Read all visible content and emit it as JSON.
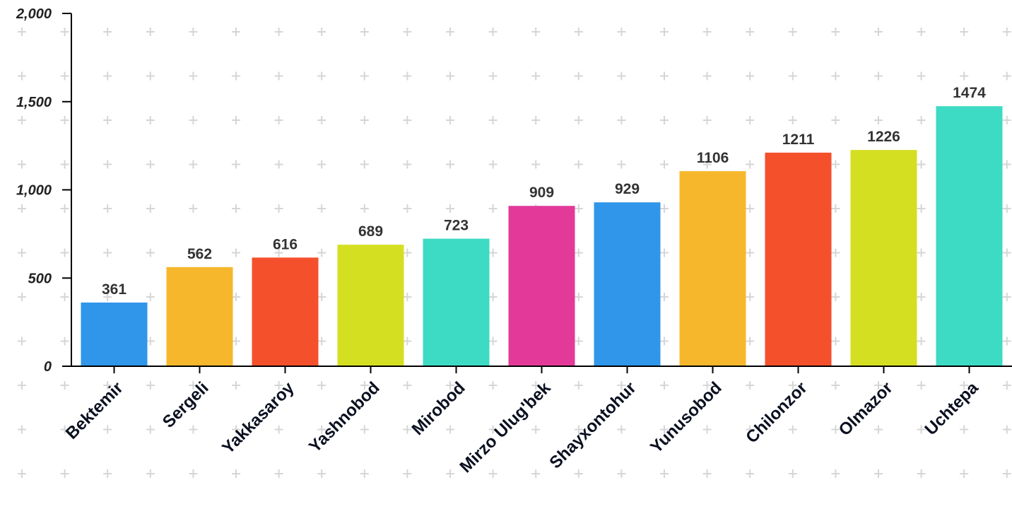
{
  "chart_data": {
    "type": "bar",
    "title": "",
    "xlabel": "",
    "ylabel": "",
    "categories": [
      "Bektemir",
      "Sergeli",
      "Yakkasaroy",
      "Yashnobod",
      "Mirobod",
      "Mirzo Ulug'bek",
      "Shayxontohur",
      "Yunusobod",
      "Chilonzor",
      "Olmazor",
      "Uchtepa"
    ],
    "values": [
      361,
      562,
      616,
      689,
      723,
      909,
      929,
      1106,
      1211,
      1226,
      1474
    ],
    "data_labels": [
      "361",
      "562",
      "616",
      "689",
      "723",
      "909",
      "929",
      "1106",
      "1211",
      "1226",
      "1474"
    ],
    "colors": [
      "#3096EA",
      "#F7B72C",
      "#F5502C",
      "#D5DF22",
      "#3DDBC3",
      "#E33A9A",
      "#3096EA",
      "#F7B72C",
      "#F5502C",
      "#D5DF22",
      "#3DDBC3"
    ],
    "ylim": [
      0,
      2000
    ],
    "yticks": [
      0,
      500,
      1000,
      1500,
      2000
    ],
    "ytick_labels": [
      "0",
      "500",
      "1,000",
      "1,500",
      "2,000"
    ],
    "grid": "plus-marker dots",
    "legend": "none"
  }
}
